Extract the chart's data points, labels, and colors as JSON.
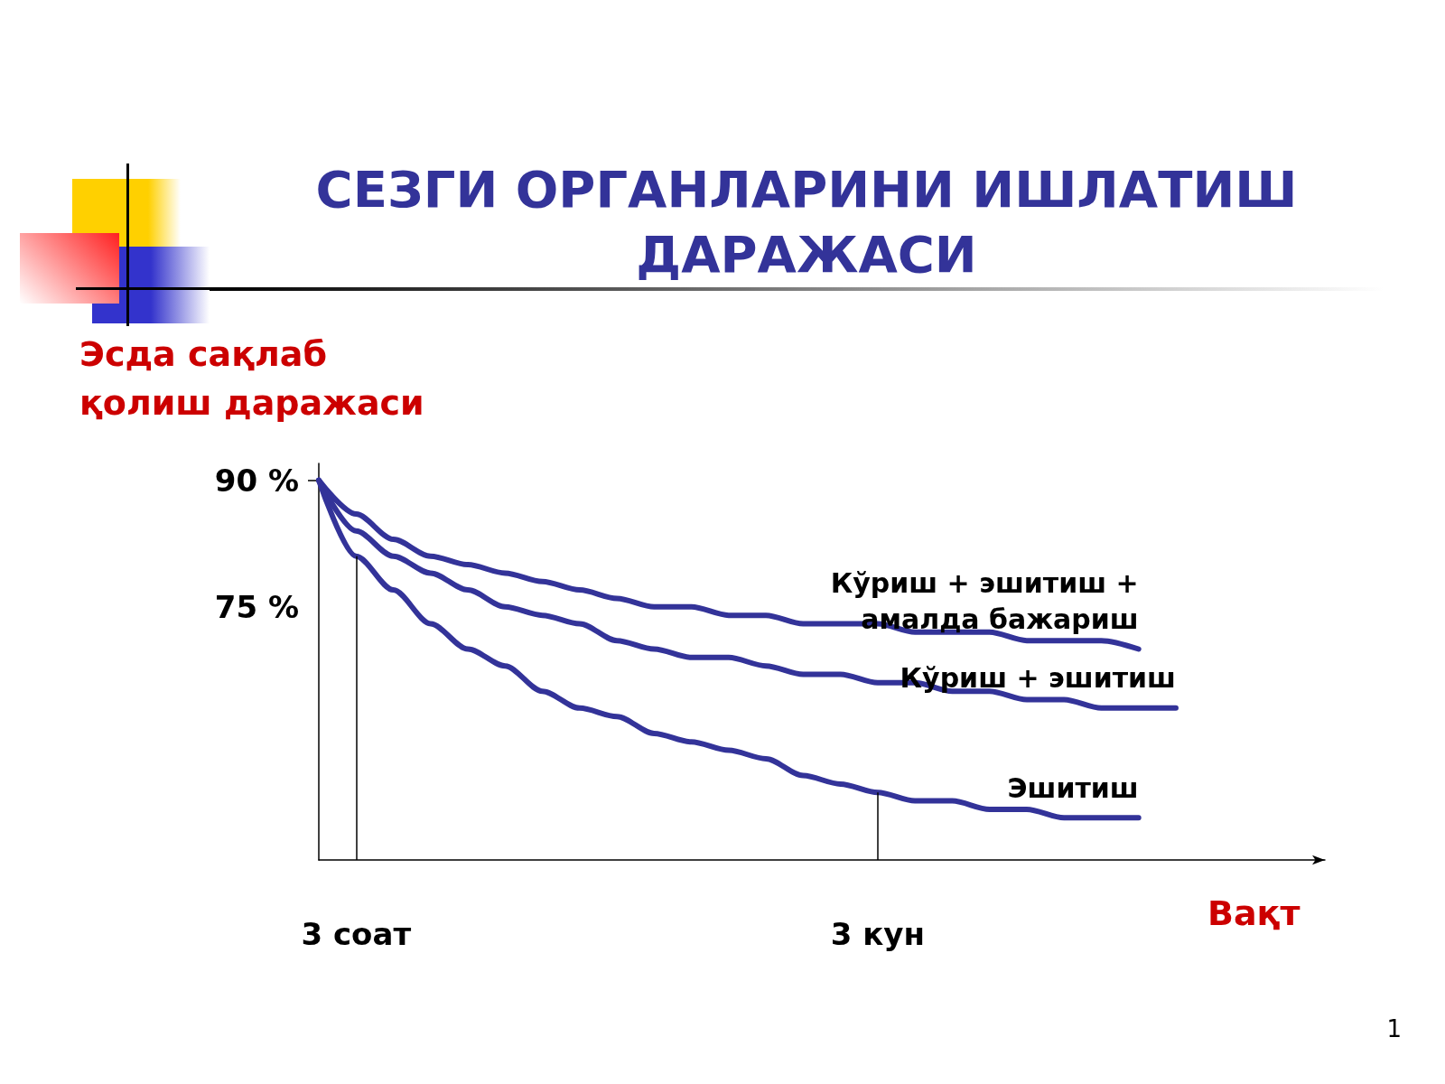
{
  "chart_data": {
    "type": "line",
    "title": "СЕЗГИ ОРГАНЛАРИНИ ИШЛАТИШ\nДАРАЖАСИ",
    "xlabel": "Вақт",
    "ylabel": "Эсда сақлаб\nқолиш даражаси",
    "categories": [
      null,
      "3 соат",
      null,
      null,
      null,
      null,
      null,
      null,
      null,
      null,
      null,
      null,
      null,
      null,
      null,
      "3 кун",
      null,
      null,
      null,
      null,
      null,
      null,
      null,
      null,
      null,
      null,
      null,
      null
    ],
    "series": [
      {
        "name": "Кўриш + эшитиш +\nамалда бажариш",
        "color": "#333399",
        "values": [
          90,
          86,
          83,
          81,
          80,
          79,
          78,
          77,
          76,
          75,
          75,
          74,
          74,
          73,
          73,
          73,
          72,
          72,
          72,
          71,
          71,
          71,
          70,
          null,
          null,
          null,
          null,
          null
        ]
      },
      {
        "name": "Кўриш + эшитиш",
        "color": "#333399",
        "values": [
          90,
          84,
          81,
          79,
          77,
          75,
          74,
          73,
          71,
          70,
          69,
          69,
          68,
          67,
          67,
          66,
          66,
          65,
          65,
          64,
          64,
          63,
          63,
          63,
          null,
          null,
          null,
          null
        ]
      },
      {
        "name": "Эшитиш",
        "color": "#333399",
        "values": [
          90,
          81,
          77,
          73,
          70,
          68,
          65,
          63,
          62,
          60,
          59,
          58,
          57,
          55,
          54,
          53,
          52,
          52,
          51,
          51,
          50,
          50,
          50,
          null,
          null,
          null,
          null,
          null
        ]
      }
    ],
    "ylim": [
      45,
      92
    ],
    "yticks": [
      {
        "value": 75,
        "label": "75 %"
      },
      {
        "value": 90,
        "label": "90 %"
      }
    ],
    "ref_lines": [
      {
        "axis": "x",
        "value": "3 соат"
      },
      {
        "axis": "x",
        "value": "3 кун"
      }
    ],
    "annotations": [
      "1"
    ],
    "grid": false,
    "legend": false,
    "marker": "none",
    "line_style": "solid"
  }
}
